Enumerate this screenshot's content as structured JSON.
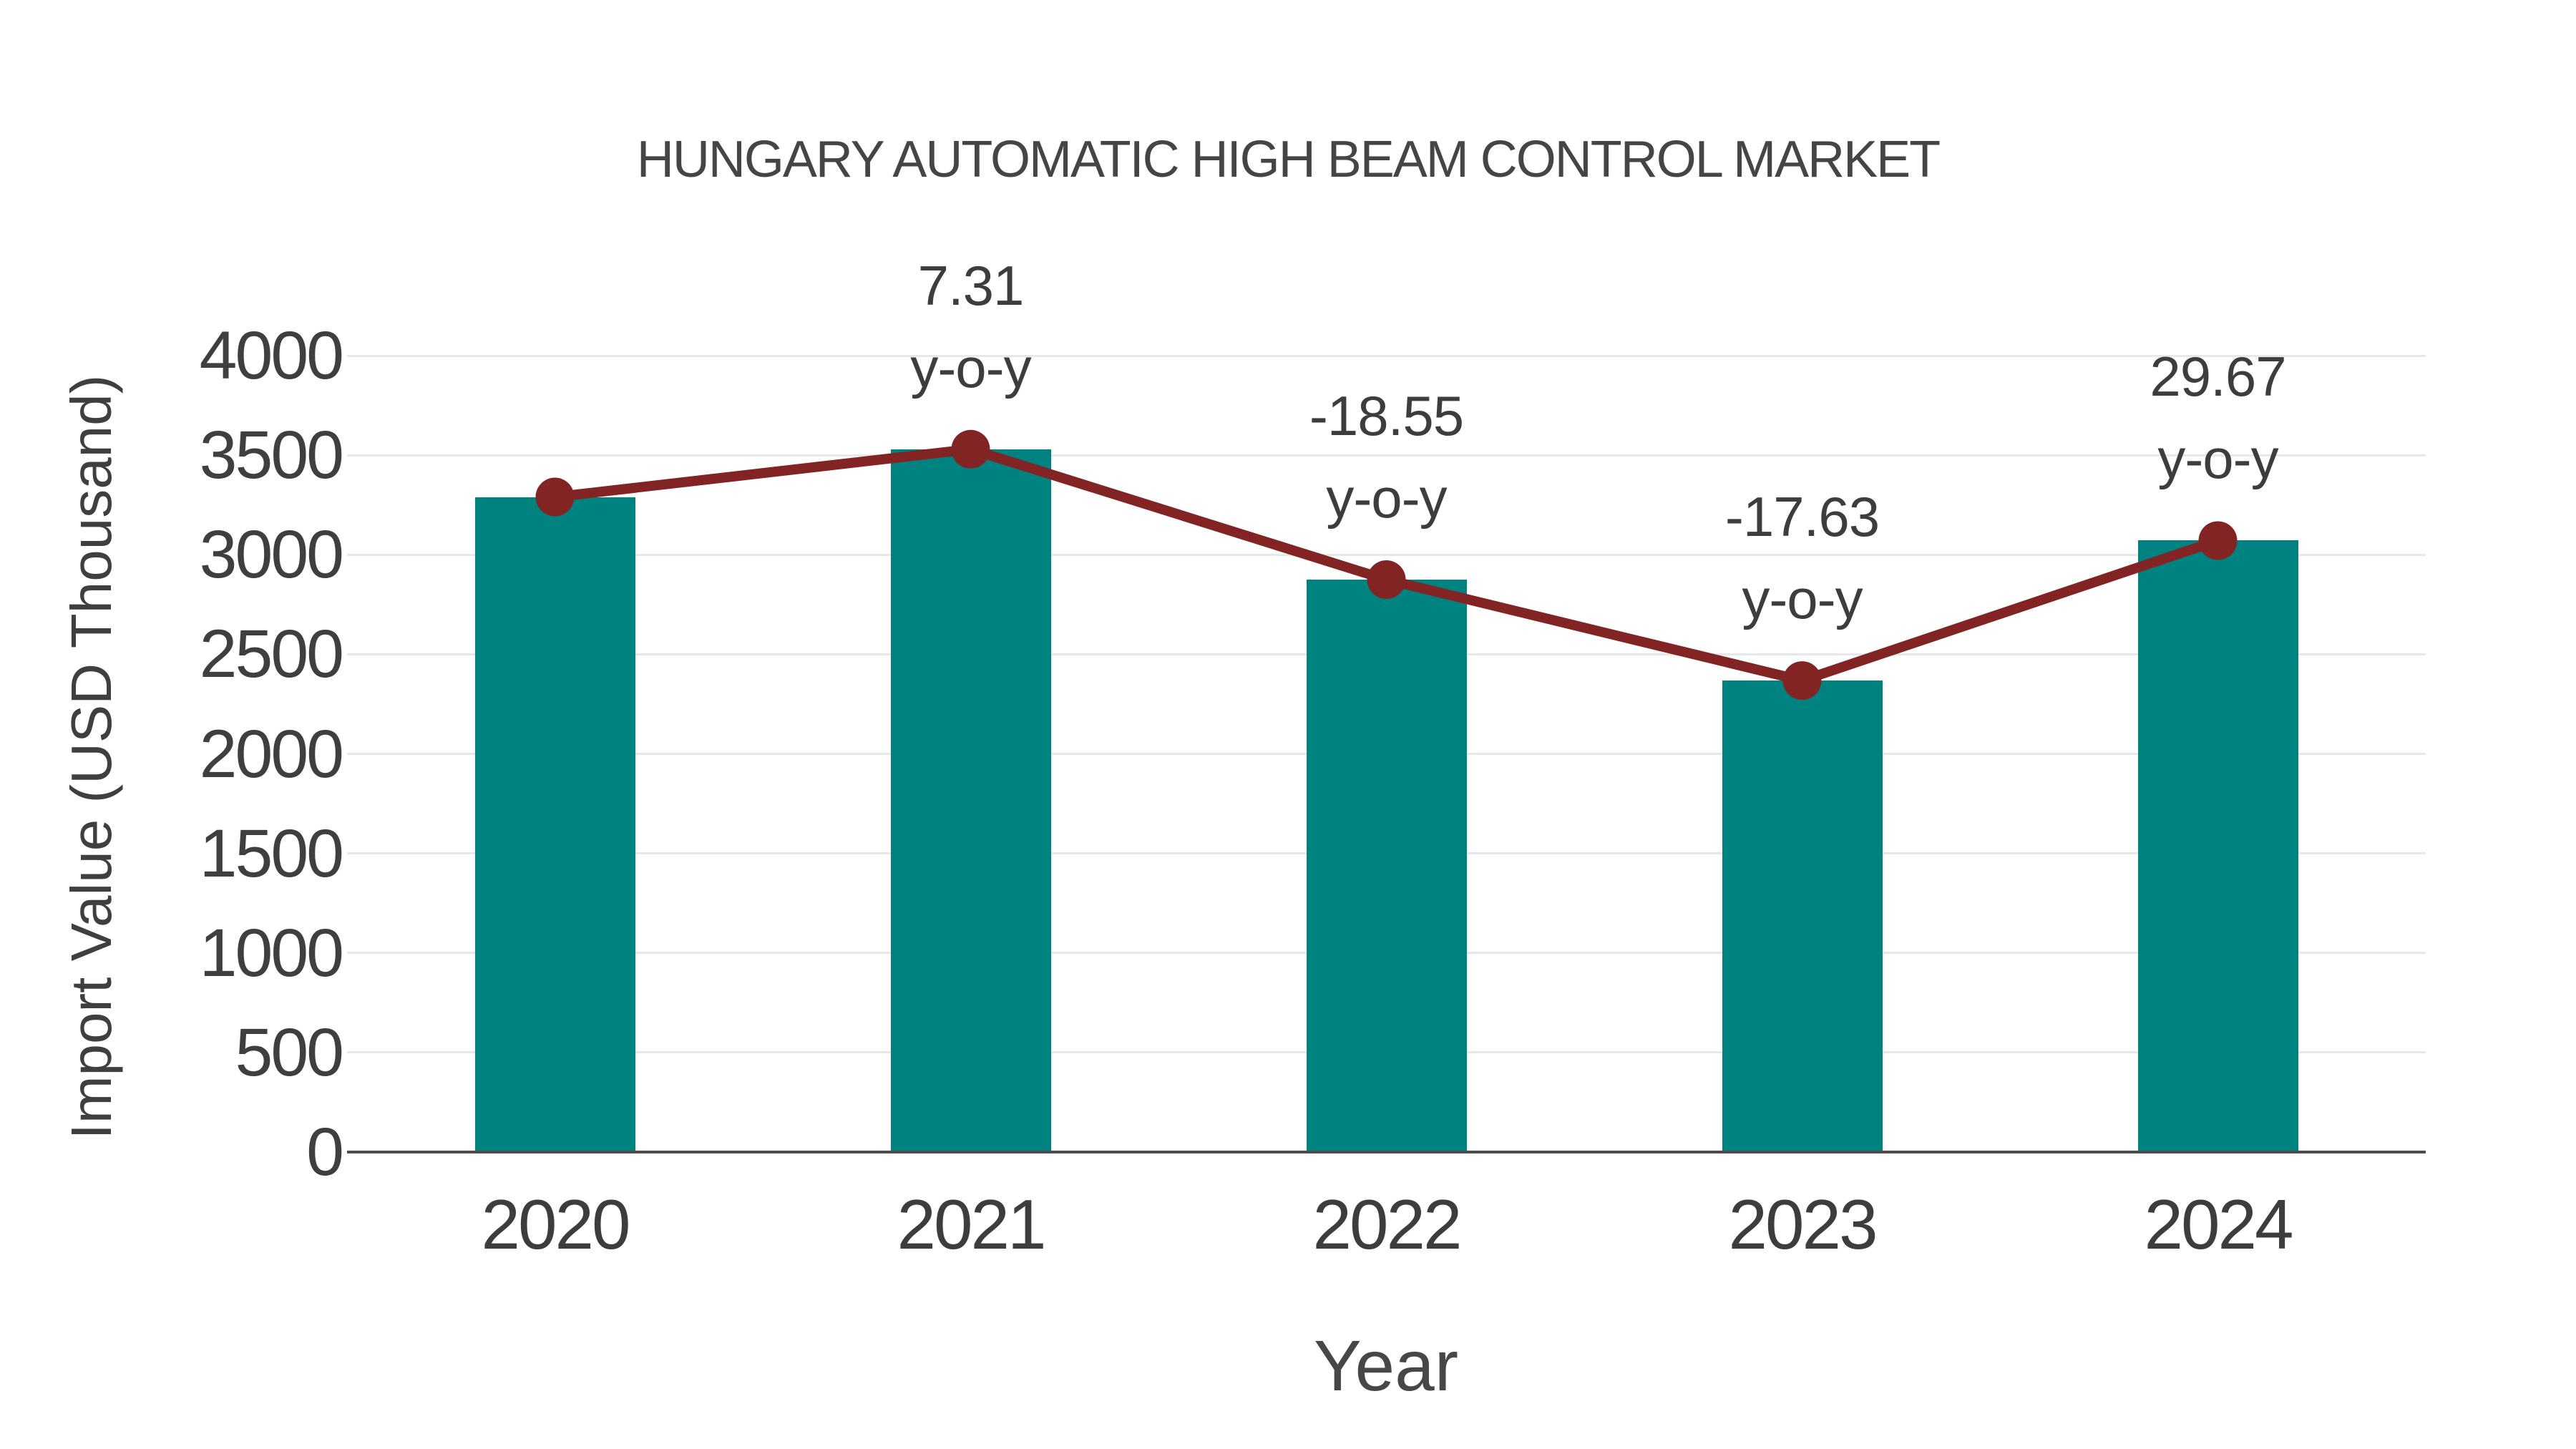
{
  "chart_data": {
    "type": "bar",
    "title": "HUNGARY AUTOMATIC HIGH BEAM CONTROL MARKET",
    "xlabel": "Year",
    "ylabel": "Import Value (USD Thousand)",
    "categories": [
      "2020",
      "2021",
      "2022",
      "2023",
      "2024"
    ],
    "series": [
      {
        "name": "Import Value (USD Thousand)",
        "type": "bar",
        "color": "#008280",
        "values": [
          3290,
          3530,
          2875,
          2368,
          3071
        ]
      },
      {
        "name": "y-o-y change (%)",
        "type": "line",
        "color": "#832424",
        "values": [
          null,
          7.31,
          -18.55,
          -17.63,
          29.67
        ]
      }
    ],
    "annotations": [
      {
        "category": "2021",
        "line1": "7.31",
        "line2": "y-o-y"
      },
      {
        "category": "2022",
        "line1": "-18.55",
        "line2": "y-o-y"
      },
      {
        "category": "2023",
        "line1": "-17.63",
        "line2": "y-o-y"
      },
      {
        "category": "2024",
        "line1": "29.67",
        "line2": "y-o-y"
      }
    ],
    "ylim": [
      0,
      4000
    ],
    "yticks": [
      0,
      500,
      1000,
      1500,
      2000,
      2500,
      3000,
      3500,
      4000
    ],
    "grid": true,
    "legend": "none",
    "colors": {
      "bar": "#008280",
      "line": "#832424",
      "marker": "#832424",
      "text": "#3d3d3d",
      "grid": "#e8e8e8",
      "axis": "#4d4d4d",
      "background": "#ffffff"
    }
  }
}
